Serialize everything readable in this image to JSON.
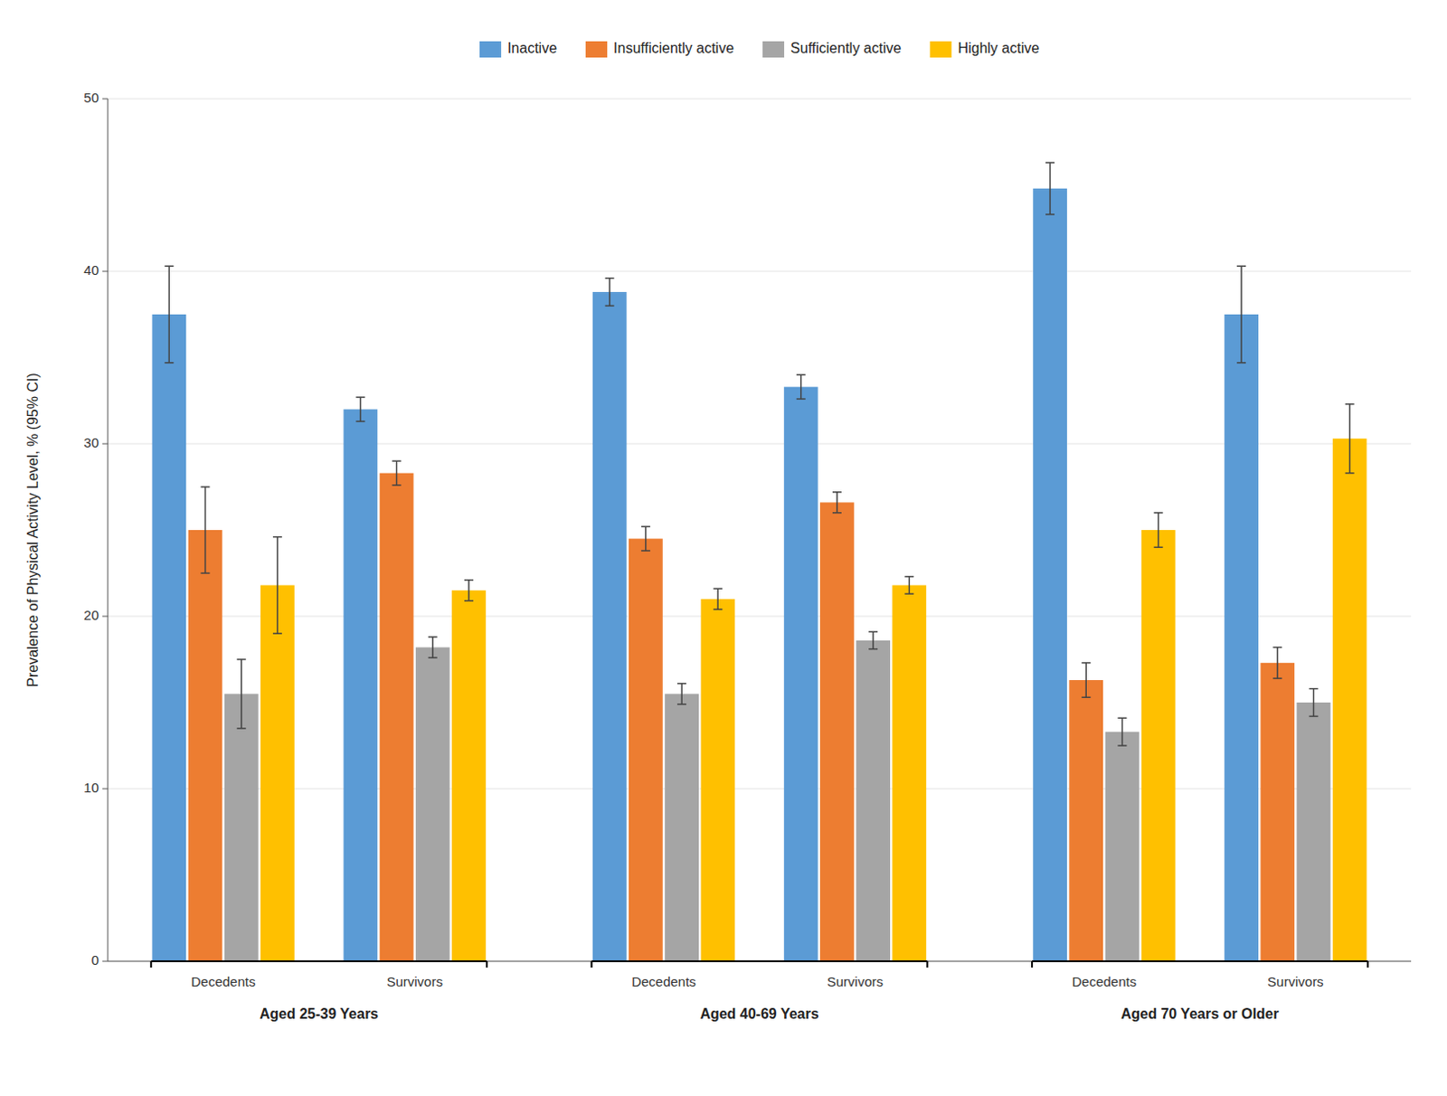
{
  "chart_data": {
    "type": "bar",
    "categories": [
      "Decedents",
      "Survivors",
      "Decedents",
      "Survivors",
      "Decedents",
      "Survivors"
    ],
    "category_groups": [
      "Aged 25-39 Years",
      "Aged 40-69 Years",
      "Aged 70 Years or Older"
    ],
    "y_label": "Prevalence of Physical Activity Level, % (95% CI)",
    "series": [
      {
        "name": "Inactive",
        "color": "#5B9BD5",
        "values": [
          37.5,
          32.0,
          38.8,
          33.3,
          44.8,
          37.5
        ],
        "errors": [
          2.8,
          0.7,
          0.8,
          0.7,
          1.5,
          2.8
        ]
      },
      {
        "name": "Insufficiently active",
        "color": "#ED7D31",
        "values": [
          25.0,
          28.3,
          24.5,
          26.6,
          16.3,
          17.3
        ],
        "errors": [
          2.5,
          0.7,
          0.7,
          0.6,
          1.0,
          0.9
        ]
      },
      {
        "name": "Sufficiently active",
        "color": "#A5A5A5",
        "values": [
          15.5,
          18.2,
          15.5,
          18.6,
          13.3,
          15.0
        ],
        "errors": [
          2.0,
          0.6,
          0.6,
          0.5,
          0.8,
          0.8
        ]
      },
      {
        "name": "Highly active",
        "color": "#FFC000",
        "values": [
          21.8,
          21.5,
          21.0,
          21.8,
          25.0,
          30.3
        ],
        "errors": [
          2.8,
          0.6,
          0.6,
          0.5,
          1.0,
          2.0
        ]
      }
    ],
    "ylim": [
      0,
      50
    ],
    "yticks": [
      0,
      10,
      20,
      30,
      40,
      50
    ],
    "grid": true,
    "legend": "top"
  }
}
